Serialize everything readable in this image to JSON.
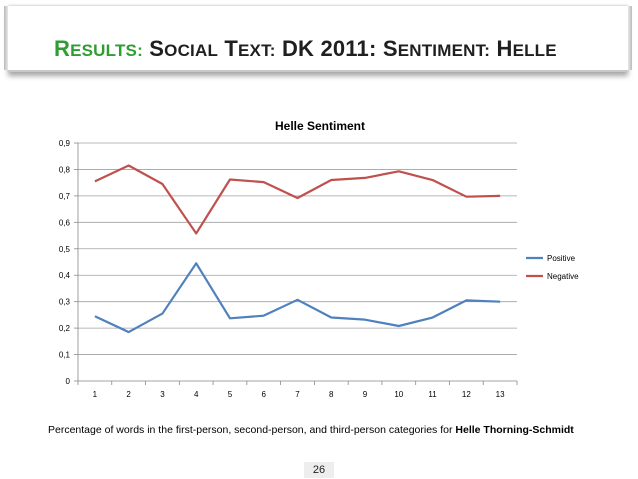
{
  "slide": {
    "title_accent_first": "R",
    "title_accent_rest": "ESULTS:",
    "title_first_S": "S",
    "title_ocial": "OCIAL",
    "title_first_T": "T",
    "title_ext": "EXT:",
    "title_dk": "DK 2011:",
    "title_first_S2": "S",
    "title_entiment": "ENTIMENT:",
    "title_first_H": "H",
    "title_elle": "ELLE",
    "caption_prefix": "Percentage of words in the first-person, second-person, and third-person categories for ",
    "caption_name": "Helle Thorning-Schmidt",
    "page_number": "26"
  },
  "colors": {
    "accent": "#2e9e32",
    "positive": "#4f81bd",
    "negative": "#c0504d",
    "grid": "#a0a0a0"
  },
  "chart_data": {
    "type": "line",
    "title": "Helle Sentiment",
    "xlabel": "",
    "ylabel": "",
    "categories": [
      "1",
      "2",
      "3",
      "4",
      "5",
      "6",
      "7",
      "8",
      "9",
      "10",
      "11",
      "12",
      "13"
    ],
    "series": [
      {
        "name": "Positive",
        "values": [
          0.245,
          0.185,
          0.255,
          0.445,
          0.237,
          0.247,
          0.307,
          0.24,
          0.232,
          0.208,
          0.24,
          0.305,
          0.3
        ]
      },
      {
        "name": "Negative",
        "values": [
          0.755,
          0.815,
          0.745,
          0.558,
          0.762,
          0.752,
          0.692,
          0.76,
          0.768,
          0.793,
          0.76,
          0.697,
          0.7
        ]
      }
    ],
    "ylim": [
      0,
      0.9
    ],
    "y_ticks": [
      "0",
      "0,1",
      "0,2",
      "0,3",
      "0,4",
      "0,5",
      "0,6",
      "0,7",
      "0,8",
      "0,9"
    ],
    "grid": true,
    "legend_position": "right"
  }
}
